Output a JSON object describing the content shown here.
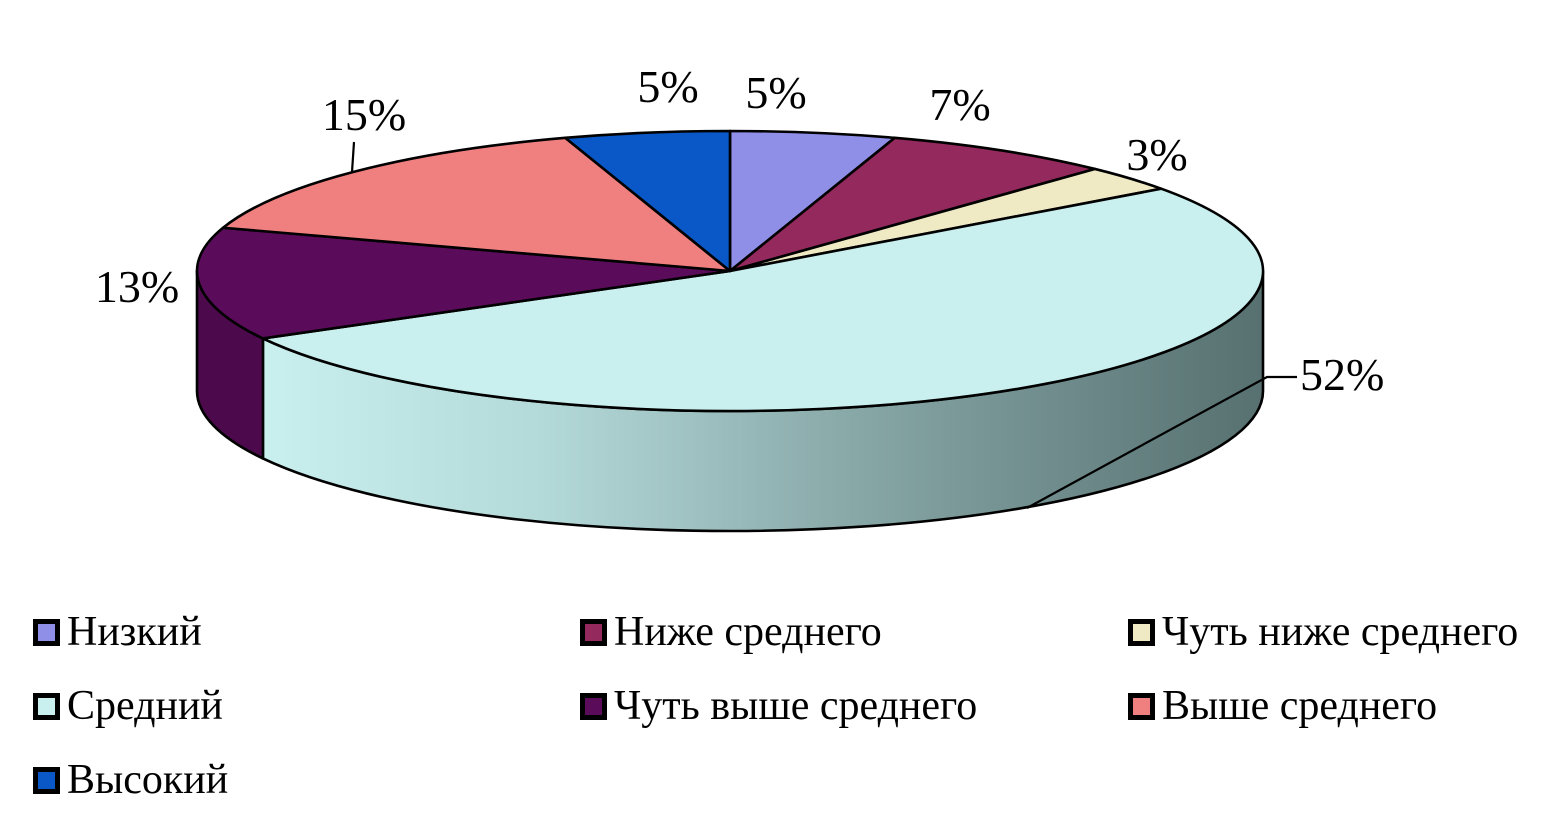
{
  "chart_data": {
    "type": "pie",
    "style": "3d",
    "title": "",
    "start_angle_deg": 0,
    "direction": "clockwise",
    "legend_position": "bottom",
    "outline_color": "#000000",
    "segments": [
      {
        "label": "Низкий",
        "value": 5,
        "display": "5%",
        "color": "#8F8FE8"
      },
      {
        "label": "Ниже среднего",
        "value": 7,
        "display": "7%",
        "color": "#93295C"
      },
      {
        "label": "Чуть ниже среднего",
        "value": 3,
        "display": "3%",
        "color": "#EFEAC4"
      },
      {
        "label": "Средний",
        "value": 52,
        "display": "52%",
        "color": "#C9EFEF",
        "side_gradient": [
          "#C9EFEF",
          "#B4D9D9",
          "#84A3A3",
          "#577070"
        ]
      },
      {
        "label": "Чуть выше среднего",
        "value": 13,
        "display": "13%",
        "color": "#5A0C5A"
      },
      {
        "label": "Выше среднего",
        "value": 15,
        "display": "15%",
        "color": "#F08080"
      },
      {
        "label": "Высокий",
        "value": 5,
        "display": "5%",
        "color": "#0A58C8"
      }
    ]
  }
}
